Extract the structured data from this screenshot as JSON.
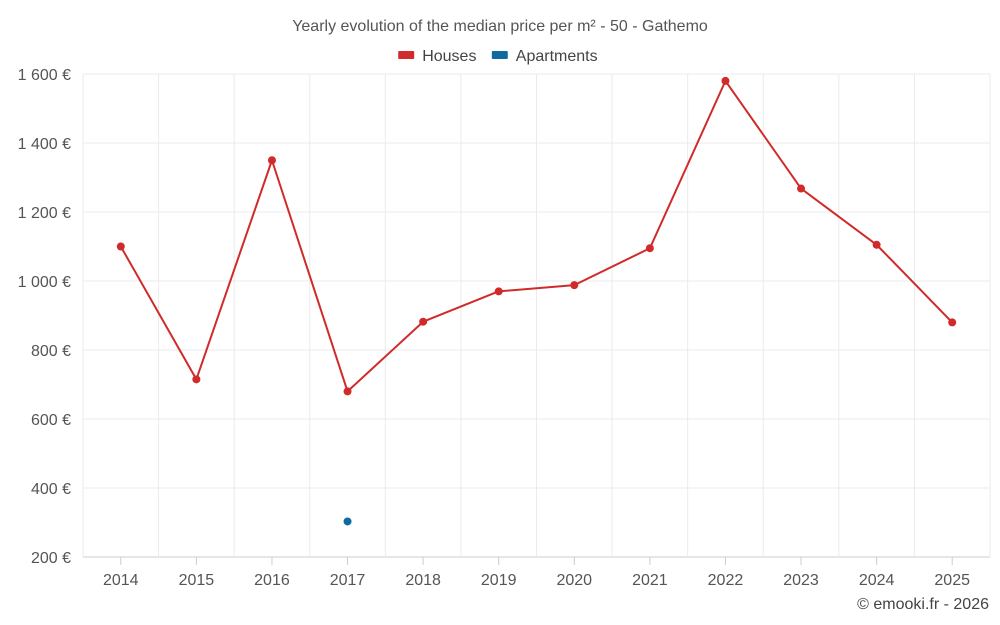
{
  "chart_data": {
    "type": "line",
    "title": "Yearly evolution of the median price per m² - 50 - Gathemo",
    "categories": [
      "2014",
      "2015",
      "2016",
      "2017",
      "2018",
      "2019",
      "2020",
      "2021",
      "2022",
      "2023",
      "2024",
      "2025"
    ],
    "series": [
      {
        "name": "Houses",
        "color": "#d02a2a",
        "values": [
          1100,
          715,
          1350,
          680,
          882,
          970,
          988,
          1095,
          1580,
          1268,
          1105,
          880
        ]
      },
      {
        "name": "Apartments",
        "color": "#0f6aa0",
        "values": [
          null,
          null,
          null,
          303,
          null,
          null,
          null,
          null,
          null,
          null,
          null,
          null
        ]
      }
    ],
    "ylim": [
      200,
      1600
    ],
    "yticks": [
      200,
      400,
      600,
      800,
      1000,
      1200,
      1400,
      1600
    ],
    "ytick_labels": [
      "200 €",
      "400 €",
      "600 €",
      "800 €",
      "1 000 €",
      "1 200 €",
      "1 400 €",
      "1 600 €"
    ],
    "xlabel": "",
    "ylabel": "",
    "grid": true,
    "legend": "top-center"
  },
  "credit": "© emooki.fr - 2026"
}
